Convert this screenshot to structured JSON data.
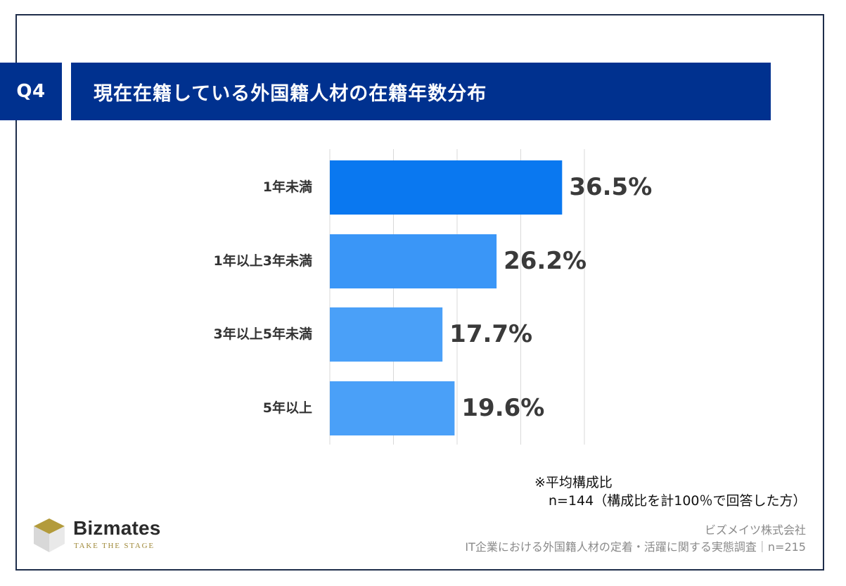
{
  "header": {
    "badge": "Q4",
    "title": "現在在籍している外国籍人材の在籍年数分布"
  },
  "chart_data": {
    "type": "bar",
    "orientation": "horizontal",
    "categories": [
      "1年未満",
      "1年以上3年未満",
      "3年以上5年未満",
      "5年以上"
    ],
    "values": [
      36.5,
      26.2,
      17.7,
      19.6
    ],
    "value_labels": [
      "36.5%",
      "26.2%",
      "17.7%",
      "19.6%"
    ],
    "xlim": [
      0,
      40
    ],
    "grid": true,
    "colors": [
      "#0a78f0",
      "#3a96f7",
      "#4aa0f8",
      "#4aa0f8"
    ]
  },
  "notes": {
    "title": "※平均構成比",
    "detail": "n=144（構成比を計100％で回答した方）"
  },
  "footer": {
    "company": "ビズメイツ株式会社",
    "survey": "IT企業における外国籍人材の定着・活躍に関する実態調査｜n=215"
  },
  "logo": {
    "name": "Bizmates",
    "tagline": "TAKE THE STAGE"
  }
}
